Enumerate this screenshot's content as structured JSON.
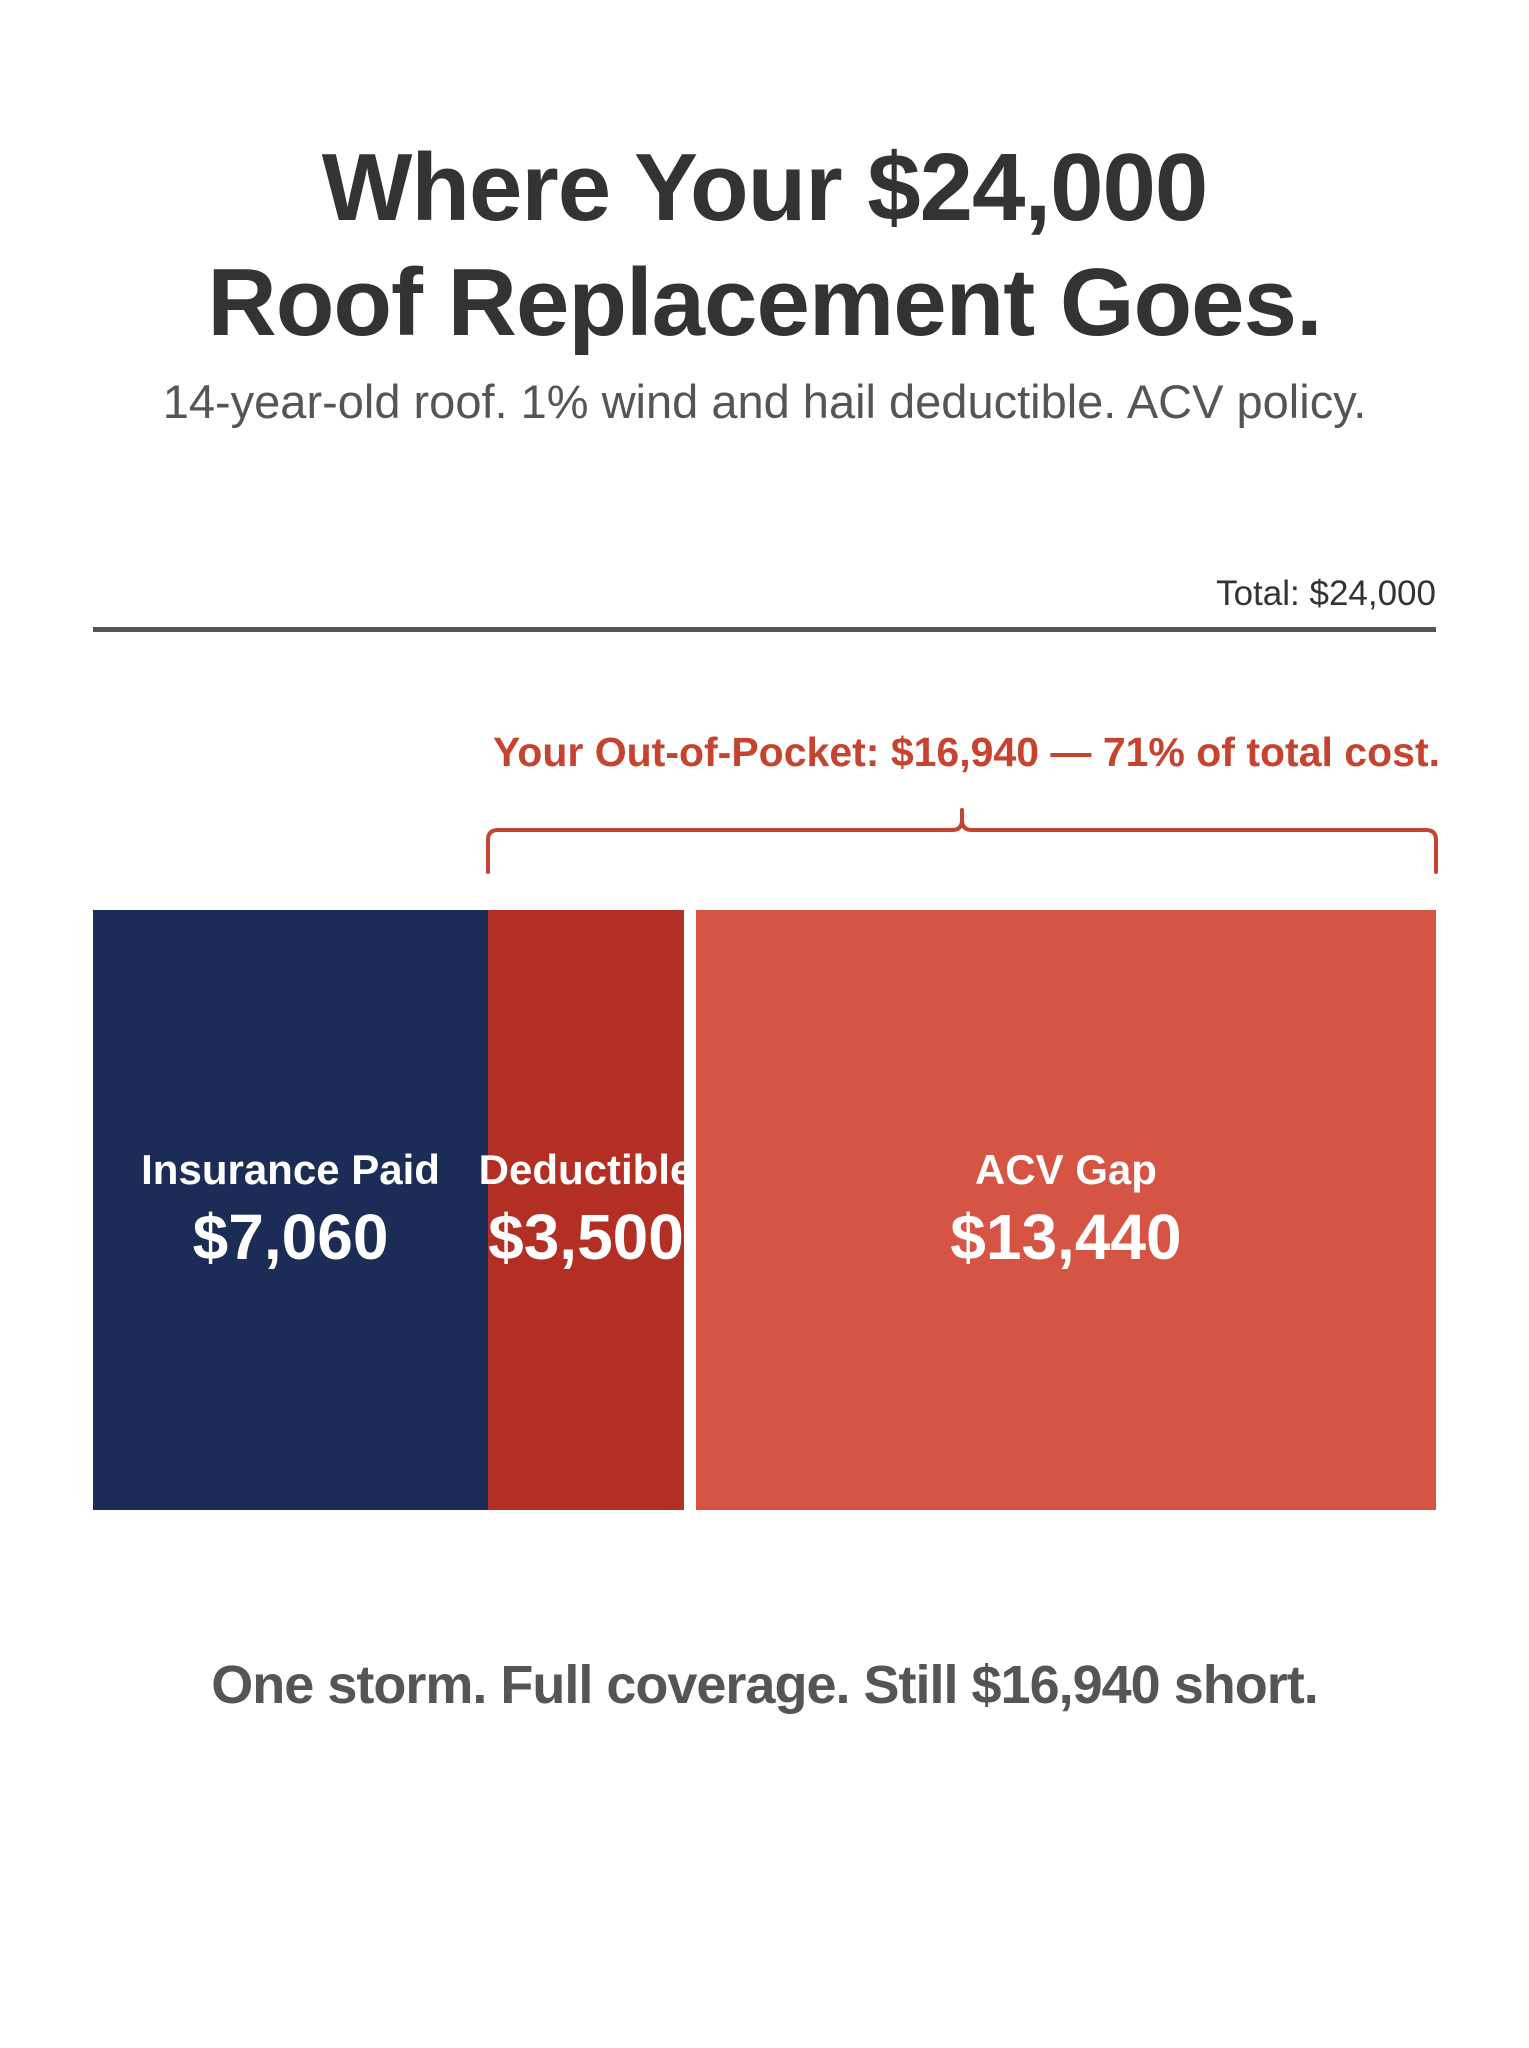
{
  "chart_data": {
    "type": "bar",
    "orientation": "horizontal-stacked",
    "title": "Where Your $24,000 Roof Replacement Goes.",
    "title_lines": [
      "Where Your $24,000",
      "Roof Replacement Goes."
    ],
    "subtitle": "14-year-old roof. 1% wind and hail deductible. ACV policy.",
    "total_label": "Total: $24,000",
    "total": 24000,
    "series": [
      {
        "name": "Insurance Paid",
        "value": 7060,
        "value_label": "$7,060",
        "color": "#1b2d57"
      },
      {
        "name": "Deductible",
        "value": 3500,
        "value_label": "$3,500",
        "color": "#b32f24"
      },
      {
        "name": "ACV Gap",
        "value": 13440,
        "value_label": "$13,440",
        "color": "#d65443"
      }
    ],
    "annotation": {
      "text": "Your Out-of-Pocket: $16,940 — 71% of total cost.",
      "spans_series": [
        "Deductible",
        "ACV Gap"
      ],
      "value": 16940,
      "color": "#c6432f"
    },
    "footer": "One storm. Full coverage. Still $16,940 short.",
    "grid": false,
    "legend": "none"
  }
}
